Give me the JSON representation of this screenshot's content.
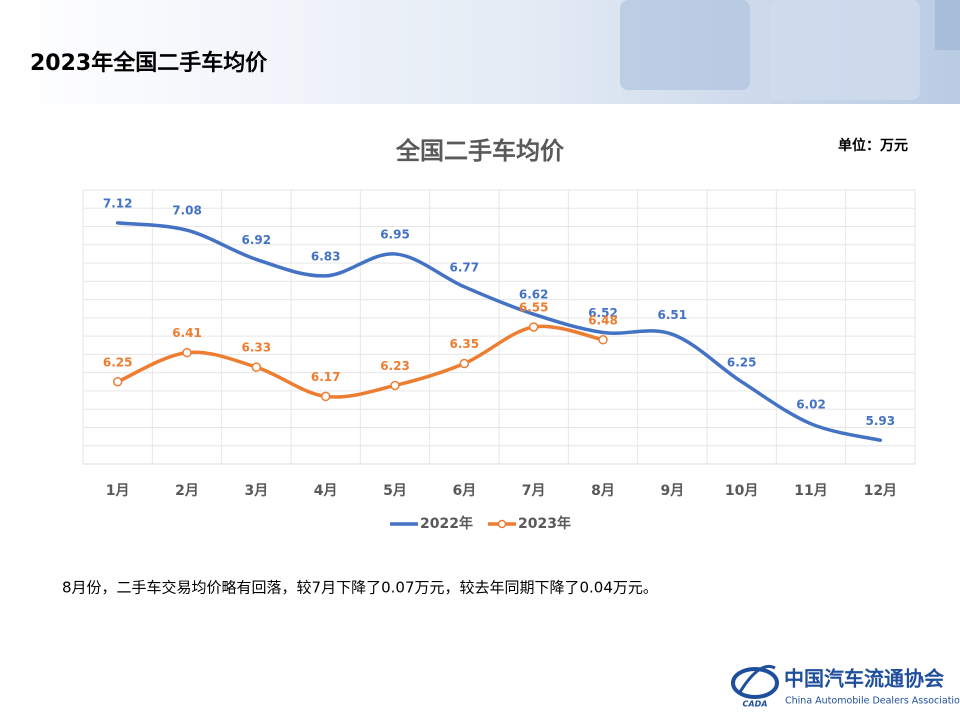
{
  "header": {
    "title": "2023年全国二手车均价"
  },
  "chart_data": {
    "type": "line",
    "title": "全国二手车均价",
    "unit_label": "单位：万元",
    "categories": [
      "1月",
      "2月",
      "3月",
      "4月",
      "5月",
      "6月",
      "7月",
      "8月",
      "9月",
      "10月",
      "11月",
      "12月"
    ],
    "series": [
      {
        "name": "2022年",
        "color": "#4472c4",
        "values": [
          7.12,
          7.08,
          6.92,
          6.83,
          6.95,
          6.77,
          6.62,
          6.52,
          6.51,
          6.25,
          6.02,
          5.93
        ]
      },
      {
        "name": "2023年",
        "color": "#ed7d31",
        "markers": true,
        "values": [
          6.25,
          6.41,
          6.33,
          6.17,
          6.23,
          6.35,
          6.55,
          6.48,
          null,
          null,
          null,
          null
        ]
      }
    ],
    "ylim": [
      5.8,
      7.3
    ],
    "yticks": [
      5.8,
      5.9,
      6,
      6.1,
      6.2,
      6.3,
      6.4,
      6.5,
      6.6,
      6.7,
      6.8,
      6.9,
      7,
      7.1,
      7.2,
      7.3
    ],
    "ytick_labels": false,
    "grid": true,
    "data_labels": true,
    "smooth": true,
    "legend": "bottom"
  },
  "note": "8月份，二手车交易均价略有回落，较7月下降了0.07万元，较去年同期下降了0.04万元。",
  "footer": {
    "org_name": "中国汽车流通协会",
    "org_name_en": "China Automobile Dealers Association",
    "logo_text": "CADA"
  }
}
